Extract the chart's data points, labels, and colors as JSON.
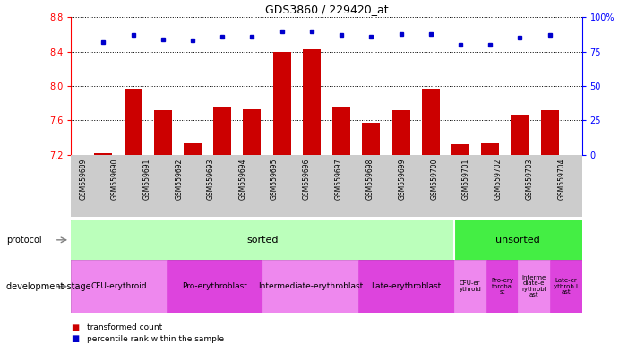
{
  "title": "GDS3860 / 229420_at",
  "samples": [
    "GSM559689",
    "GSM559690",
    "GSM559691",
    "GSM559692",
    "GSM559693",
    "GSM559694",
    "GSM559695",
    "GSM559696",
    "GSM559697",
    "GSM559698",
    "GSM559699",
    "GSM559700",
    "GSM559701",
    "GSM559702",
    "GSM559703",
    "GSM559704"
  ],
  "bar_values": [
    7.22,
    7.97,
    7.72,
    7.33,
    7.75,
    7.73,
    8.4,
    8.43,
    7.75,
    7.57,
    7.72,
    7.97,
    7.32,
    7.33,
    7.67,
    7.72
  ],
  "dot_values": [
    82,
    87,
    84,
    83,
    86,
    86,
    90,
    90,
    87,
    86,
    88,
    88,
    80,
    80,
    85,
    87
  ],
  "ylim_left": [
    7.2,
    8.8
  ],
  "ylim_right": [
    0,
    100
  ],
  "yticks_left": [
    7.2,
    7.6,
    8.0,
    8.4,
    8.8
  ],
  "yticks_right": [
    0,
    25,
    50,
    75,
    100
  ],
  "bar_color": "#cc0000",
  "dot_color": "#0000cc",
  "bar_bottom": 7.2,
  "protocol": {
    "sorted": {
      "start": 0,
      "end": 12,
      "color": "#bbffbb",
      "label": "sorted"
    },
    "unsorted": {
      "start": 12,
      "end": 16,
      "color": "#44ee44",
      "label": "unsorted"
    }
  },
  "dev_stage": [
    {
      "label": "CFU-erythroid",
      "start": 0,
      "end": 3,
      "color": "#ee88ee"
    },
    {
      "label": "Pro-erythroblast",
      "start": 3,
      "end": 6,
      "color": "#dd44dd"
    },
    {
      "label": "Intermediate-erythroblast",
      "start": 6,
      "end": 9,
      "color": "#ee88ee"
    },
    {
      "label": "Late-erythroblast",
      "start": 9,
      "end": 12,
      "color": "#dd44dd"
    },
    {
      "label": "CFU-er\nythroid",
      "start": 12,
      "end": 13,
      "color": "#ee88ee"
    },
    {
      "label": "Pro-ery\nthroba\nst",
      "start": 13,
      "end": 14,
      "color": "#dd44dd"
    },
    {
      "label": "Interme\ndiate-e\nrythrobl\nast",
      "start": 14,
      "end": 15,
      "color": "#ee88ee"
    },
    {
      "label": "Late-er\nythrob l\nast",
      "start": 15,
      "end": 16,
      "color": "#dd44dd"
    }
  ],
  "xtick_bg_color": "#cccccc",
  "left_label_color": "#888888"
}
